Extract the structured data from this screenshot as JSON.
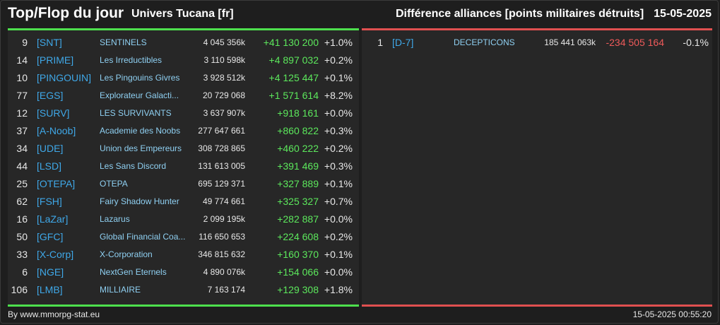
{
  "header": {
    "title": "Top/Flop du jour",
    "universe": "Univers Tucana [fr]",
    "metric": "Différence alliances [points militaires détruits]",
    "date": "15-05-2025"
  },
  "top": [
    {
      "rank": "9",
      "tag": "[SNT]",
      "name": "SENTINELS",
      "total": "4 045 356k",
      "diff": "+41 130 200",
      "pct": "+1.0%"
    },
    {
      "rank": "14",
      "tag": "[PRIME]",
      "name": "Les Irreductibles",
      "total": "3 110 598k",
      "diff": "+4 897 032",
      "pct": "+0.2%"
    },
    {
      "rank": "10",
      "tag": "[PINGOUIN]",
      "name": "Les Pingouins Givres",
      "total": "3 928 512k",
      "diff": "+4 125 447",
      "pct": "+0.1%"
    },
    {
      "rank": "77",
      "tag": "[EGS]",
      "name": "Explorateur Galacti...",
      "total": "20 729 068",
      "diff": "+1 571 614",
      "pct": "+8.2%"
    },
    {
      "rank": "12",
      "tag": "[SURV]",
      "name": "LES SURVIVANTS",
      "total": "3 637 907k",
      "diff": "+918 161",
      "pct": "+0.0%"
    },
    {
      "rank": "37",
      "tag": "[A-Noob]",
      "name": "Academie des Noobs",
      "total": "277 647 661",
      "diff": "+860 822",
      "pct": "+0.3%"
    },
    {
      "rank": "34",
      "tag": "[UDE]",
      "name": "Union des Empereurs",
      "total": "308 728 865",
      "diff": "+460 222",
      "pct": "+0.2%"
    },
    {
      "rank": "44",
      "tag": "[LSD]",
      "name": "Les Sans Discord",
      "total": "131 613 005",
      "diff": "+391 469",
      "pct": "+0.3%"
    },
    {
      "rank": "25",
      "tag": "[OTEPA]",
      "name": "OTEPA",
      "total": "695 129 371",
      "diff": "+327 889",
      "pct": "+0.1%"
    },
    {
      "rank": "62",
      "tag": "[FSH]",
      "name": "Fairy Shadow Hunter",
      "total": "49 774 661",
      "diff": "+325 327",
      "pct": "+0.7%"
    },
    {
      "rank": "16",
      "tag": "[LaZar]",
      "name": "Lazarus",
      "total": "2 099 195k",
      "diff": "+282 887",
      "pct": "+0.0%"
    },
    {
      "rank": "50",
      "tag": "[GFC]",
      "name": "Global Financial Coa...",
      "total": "116 650 653",
      "diff": "+224 608",
      "pct": "+0.2%"
    },
    {
      "rank": "33",
      "tag": "[X-Corp]",
      "name": "X-Corporation",
      "total": "346 815 632",
      "diff": "+160 370",
      "pct": "+0.1%"
    },
    {
      "rank": "6",
      "tag": "[NGE]",
      "name": "NextGen Eternels",
      "total": "4 890 076k",
      "diff": "+154 066",
      "pct": "+0.0%"
    },
    {
      "rank": "106",
      "tag": "[LMB]",
      "name": "MILLIAIRE",
      "total": "7 163 174",
      "diff": "+129 308",
      "pct": "+1.8%"
    }
  ],
  "flop": [
    {
      "rank": "1",
      "tag": "[D-7]",
      "name": "DECEPTICONS",
      "total": "185 441 063k",
      "diff": "-234 505 164",
      "pct": "-0.1%"
    }
  ],
  "colors": {
    "top_accent": "#4de04d",
    "flop_accent": "#e05050",
    "tag": "#3fa8e8",
    "name": "#8fd0f2"
  },
  "footer": {
    "source": "By www.mmorpg-stat.eu",
    "timestamp": "15-05-2025 00:55:20"
  }
}
